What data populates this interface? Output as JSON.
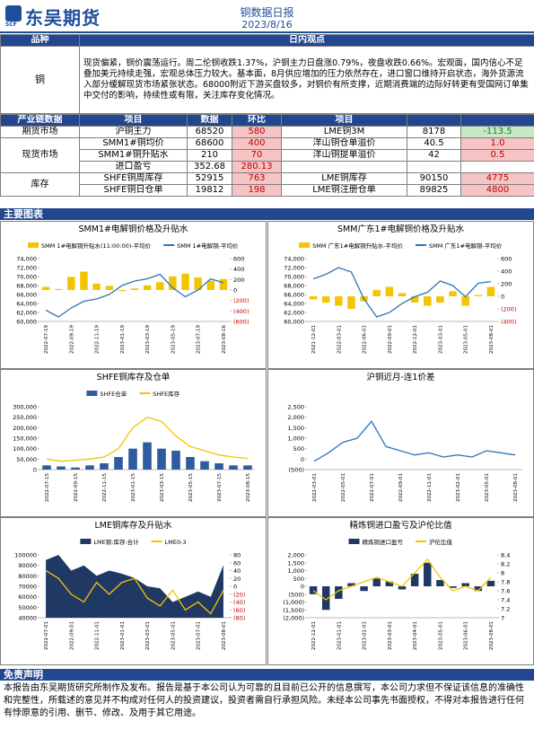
{
  "header": {
    "logo": "东吴期货",
    "logo_sub": "SCF",
    "title": "铜数据日报",
    "date": "2023/8/16"
  },
  "view": {
    "header": [
      "品种",
      "日内观点"
    ],
    "name": "铜",
    "text": "现货偏紧，铜价震荡运行。周二伦铜收跌1.37%，沪铜主力日盘涨0.79%，夜盘收跌0.66%。宏观面，国内信心不足叠加美元持续走强，宏观总体压力较大。基本面，8月供应增加的压力依然存在，进口窗口维持开启状态，海外货源流入部分缓解现货市场紧张状态。68000附近下游买盘较多，对铜价有所支撑，近期消费端的边际好转更有受国网订单集中交付的影响，持续性或有限，关注库存变化情况。"
  },
  "table": {
    "header": [
      "产业链数据",
      "项目",
      "数据",
      "环比",
      "项目"
    ],
    "groups": [
      {
        "label": "期货市场",
        "rows": [
          [
            "沪铜主力",
            "68520",
            "580",
            "LME铜3M",
            "8178",
            "-113.5"
          ]
        ]
      },
      {
        "label": "现货市场",
        "rows": [
          [
            "SMM1#铜均价",
            "68600",
            "400",
            "洋山铜仓单溢价",
            "40.5",
            "1.0"
          ],
          [
            "SMM1#铜升贴水",
            "210",
            "70",
            "洋山铜提单溢价",
            "42",
            "0.5"
          ],
          [
            "进口盈亏",
            "352.68",
            "280.13"
          ]
        ]
      },
      {
        "label": "库存",
        "rows": [
          [
            "SHFE铜周库存",
            "52915",
            "763",
            "LME铜库存",
            "90150",
            "4775"
          ],
          [
            "SHFE铜日仓单",
            "19812",
            "198",
            "LME铜注册仓单",
            "89825",
            "4800"
          ]
        ]
      }
    ]
  },
  "charts_title": "主要图表",
  "chart_data": [
    {
      "type": "combo",
      "title": "SMM1#电解铜价格及升贴水",
      "categories": [
        "2022-07-19",
        null,
        "2022-09-19",
        null,
        "2022-11-19",
        null,
        "2023-01-19",
        null,
        "2023-03-19",
        null,
        "2023-05-19",
        null,
        "2023-07-19",
        null,
        "2023-08-16"
      ],
      "series": [
        {
          "name": "SMM 1#电解铜升贴水(11:00:00)-平均价",
          "type": "bar",
          "axis": "y2",
          "color": "#f5c400",
          "values": [
            60,
            20,
            250,
            350,
            120,
            80,
            -20,
            30,
            90,
            150,
            260,
            310,
            240,
            180,
            210
          ]
        },
        {
          "name": "SMM 1#电解铜-平均价",
          "type": "line",
          "color": "#2e75b6",
          "values": [
            62500,
            61000,
            63000,
            64500,
            65000,
            66000,
            68000,
            69000,
            69500,
            70500,
            67500,
            65500,
            67000,
            69500,
            68600
          ]
        }
      ],
      "ylim": [
        60000,
        74000
      ],
      "yticks": [
        {
          "value": 60000,
          "label": "60,000"
        },
        {
          "value": 62000,
          "label": "62,000"
        },
        {
          "value": 64000,
          "label": "64,000"
        },
        {
          "value": 66000,
          "label": "66,000"
        },
        {
          "value": 68000,
          "label": "68,000"
        },
        {
          "value": 70000,
          "label": "70,000"
        },
        {
          "value": 72000,
          "label": "72,000"
        },
        {
          "value": 74000,
          "label": "74,000"
        }
      ],
      "y2lim": [
        -600,
        600
      ],
      "y2ticks": [
        {
          "value": -600,
          "label": "(600)"
        },
        {
          "value": -400,
          "label": "(400)"
        },
        {
          "value": -200,
          "label": "(200)"
        },
        0,
        200,
        400,
        600
      ]
    },
    {
      "type": "combo",
      "title": "SMM广东1#电解铜价格及升贴水",
      "categories": [
        "2021-12-01",
        null,
        "2022-03-01",
        null,
        "2022-06-01",
        null,
        "2022-09-01",
        null,
        "2022-12-01",
        null,
        "2023-03-01",
        null,
        "2023-05-01",
        null,
        "2023-08-01"
      ],
      "series": [
        {
          "name": "SMM 广东1#电解铜升贴水-平均价",
          "type": "bar",
          "axis": "y2",
          "color": "#f5c400",
          "values": [
            -50,
            -100,
            -150,
            -200,
            -80,
            100,
            150,
            50,
            -100,
            -150,
            -100,
            80,
            -150,
            20,
            150
          ]
        },
        {
          "name": "SMM 广东1#电解铜-平均价",
          "type": "line",
          "color": "#2e75b6",
          "values": [
            69500,
            70500,
            72000,
            71000,
            65000,
            61000,
            62000,
            64000,
            65500,
            66500,
            69000,
            68000,
            65500,
            68500,
            68900
          ]
        }
      ],
      "ylim": [
        60000,
        74000
      ],
      "yticks": [
        {
          "value": 60000,
          "label": "60,000"
        },
        {
          "value": 62000,
          "label": "62,000"
        },
        {
          "value": 64000,
          "label": "64,000"
        },
        {
          "value": 66000,
          "label": "66,000"
        },
        {
          "value": 68000,
          "label": "68,000"
        },
        {
          "value": 70000,
          "label": "70,000"
        },
        {
          "value": 72000,
          "label": "72,000"
        },
        {
          "value": 74000,
          "label": "74,000"
        }
      ],
      "y2lim": [
        -400,
        600
      ],
      "y2ticks": [
        {
          "value": -400,
          "label": "(400)"
        },
        {
          "value": -200,
          "label": "(200)"
        },
        0,
        200,
        400,
        600
      ]
    },
    {
      "type": "combo",
      "title": "SHFE铜库存及仓单",
      "categories": [
        "2022-07-15",
        null,
        "2022-09-15",
        null,
        "2022-11-15",
        null,
        "2023-01-15",
        null,
        "2023-03-15",
        null,
        "2023-05-15",
        null,
        "2023-07-15",
        null,
        "2023-08-15"
      ],
      "series": [
        {
          "name": "SHFE仓单",
          "type": "bar",
          "color": "#2e5c9e",
          "values": [
            20000,
            15000,
            10000,
            20000,
            30000,
            60000,
            100000,
            130000,
            100000,
            90000,
            60000,
            40000,
            30000,
            20000,
            20000
          ]
        },
        {
          "name": "SHFE库存",
          "type": "line",
          "color": "#f5c400",
          "values": [
            50000,
            40000,
            45000,
            50000,
            60000,
            100000,
            200000,
            250000,
            230000,
            160000,
            110000,
            90000,
            70000,
            60000,
            53000
          ]
        }
      ],
      "ylim": [
        0,
        300000
      ],
      "yticks": [
        0,
        {
          "value": 50000,
          "label": "50,000"
        },
        {
          "value": 100000,
          "label": "100,000"
        },
        {
          "value": 150000,
          "label": "150,000"
        },
        {
          "value": 200000,
          "label": "200,000"
        },
        {
          "value": 250000,
          "label": "250,000"
        },
        {
          "value": 300000,
          "label": "300,000"
        }
      ]
    },
    {
      "type": "line",
      "title": "沪铜近月-连1价差",
      "categories": [
        "2022-03-01",
        null,
        "2022-05-01",
        null,
        "2022-07-01",
        null,
        "2022-09-01",
        null,
        "2022-11-01",
        null,
        "2023-02-01",
        null,
        "2023-05-01",
        null,
        "2023-08-01"
      ],
      "series": [
        {
          "type": "line",
          "color": "#2e75b6",
          "values": [
            -100,
            300,
            800,
            1000,
            1800,
            600,
            400,
            200,
            300,
            100,
            200,
            100,
            400,
            300,
            200
          ]
        }
      ],
      "ylim": [
        -500,
        2500
      ],
      "yticks": [
        {
          "value": -500,
          "label": "(500)"
        },
        0,
        500,
        {
          "value": 1000,
          "label": "1,000"
        },
        {
          "value": 1500,
          "label": "1,500"
        },
        {
          "value": 2000,
          "label": "2,000"
        },
        {
          "value": 2500,
          "label": "2,500"
        }
      ]
    },
    {
      "type": "combo",
      "title": "LME铜库存及升贴水",
      "categories": [
        "2022-07-01",
        null,
        "2022-09-01",
        null,
        "2022-11-01",
        null,
        "2023-01-01",
        null,
        "2023-03-01",
        null,
        "2023-05-01",
        null,
        "2023-07-01",
        null,
        "2023-08-01"
      ],
      "series": [
        {
          "name": "LME铜:库存:合计",
          "type": "area",
          "color": "#1f3864",
          "values": [
            95000,
            100000,
            85000,
            90000,
            80000,
            85000,
            82000,
            78000,
            70000,
            68000,
            55000,
            60000,
            65000,
            60000,
            90150
          ]
        },
        {
          "name": "LME0-3",
          "type": "line",
          "axis": "y2",
          "color": "#f5c400",
          "values": [
            40,
            20,
            -20,
            -40,
            10,
            -20,
            10,
            20,
            -30,
            -50,
            -10,
            -60,
            -40,
            -70,
            -10
          ]
        }
      ],
      "ylim": [
        40000,
        100000
      ],
      "yticks": [
        40000,
        50000,
        60000,
        70000,
        80000,
        90000,
        100000
      ],
      "y2lim": [
        -80,
        80
      ],
      "y2ticks": [
        {
          "value": -80,
          "label": "(80)"
        },
        {
          "value": -60,
          "label": "(60)"
        },
        {
          "value": -40,
          "label": "(40)"
        },
        {
          "value": -20,
          "label": "(20)"
        },
        0,
        20,
        40,
        60,
        80
      ]
    },
    {
      "type": "combo",
      "title": "精炼铜进口盈亏及沪伦比值",
      "categories": [
        "2022-12-01",
        null,
        "2023-01-01",
        null,
        "2023-02-01",
        null,
        "2023-03-01",
        null,
        "2023-04-01",
        null,
        "2023-05-01",
        null,
        "2023-06-01",
        null,
        "2023-08-01"
      ],
      "series": [
        {
          "name": "精炼铜进口盈亏",
          "type": "bar",
          "color": "#1f3864",
          "values": [
            -500,
            -1500,
            -800,
            200,
            -300,
            500,
            300,
            -200,
            800,
            1500,
            400,
            -100,
            200,
            -300,
            350
          ]
        },
        {
          "name": "沪伦比值",
          "type": "line",
          "axis": "y2",
          "color": "#f5c400",
          "values": [
            7.6,
            7.4,
            7.6,
            7.7,
            7.8,
            7.9,
            7.8,
            7.7,
            8.0,
            8.3,
            7.9,
            7.6,
            7.7,
            7.6,
            7.9
          ]
        }
      ],
      "ylim": [
        -2000,
        2000
      ],
      "yticks": [
        {
          "value": -2000,
          "label": "(2,000)"
        },
        {
          "value": -1500,
          "label": "(1,500)"
        },
        {
          "value": -1000,
          "label": "(1,000)"
        },
        {
          "value": -500,
          "label": "(500)"
        },
        0,
        500,
        {
          "value": 1000,
          "label": "1,000"
        },
        {
          "value": 1500,
          "label": "1,500"
        },
        {
          "value": 2000,
          "label": "2,000"
        }
      ],
      "y2lim": [
        7,
        8.4
      ],
      "y2ticks": [
        7,
        7.2,
        7.4,
        7.6,
        7.8,
        8,
        8.2,
        8.4
      ]
    }
  ],
  "disclaimer": {
    "title": "免责声明",
    "text": "本报告由东吴期货研究所制作及发布。报告是基于本公司认为可靠的且目前已公开的信息撰写，本公司力求但不保证该信息的准确性和完整性，所载述的意见并不构成对任何人的投资建议，投资者需自行承担风险。未经本公司事先书面授权，不得对本报告进行任何有悖原意的引用、删节、修改、及用于其它用途。"
  }
}
